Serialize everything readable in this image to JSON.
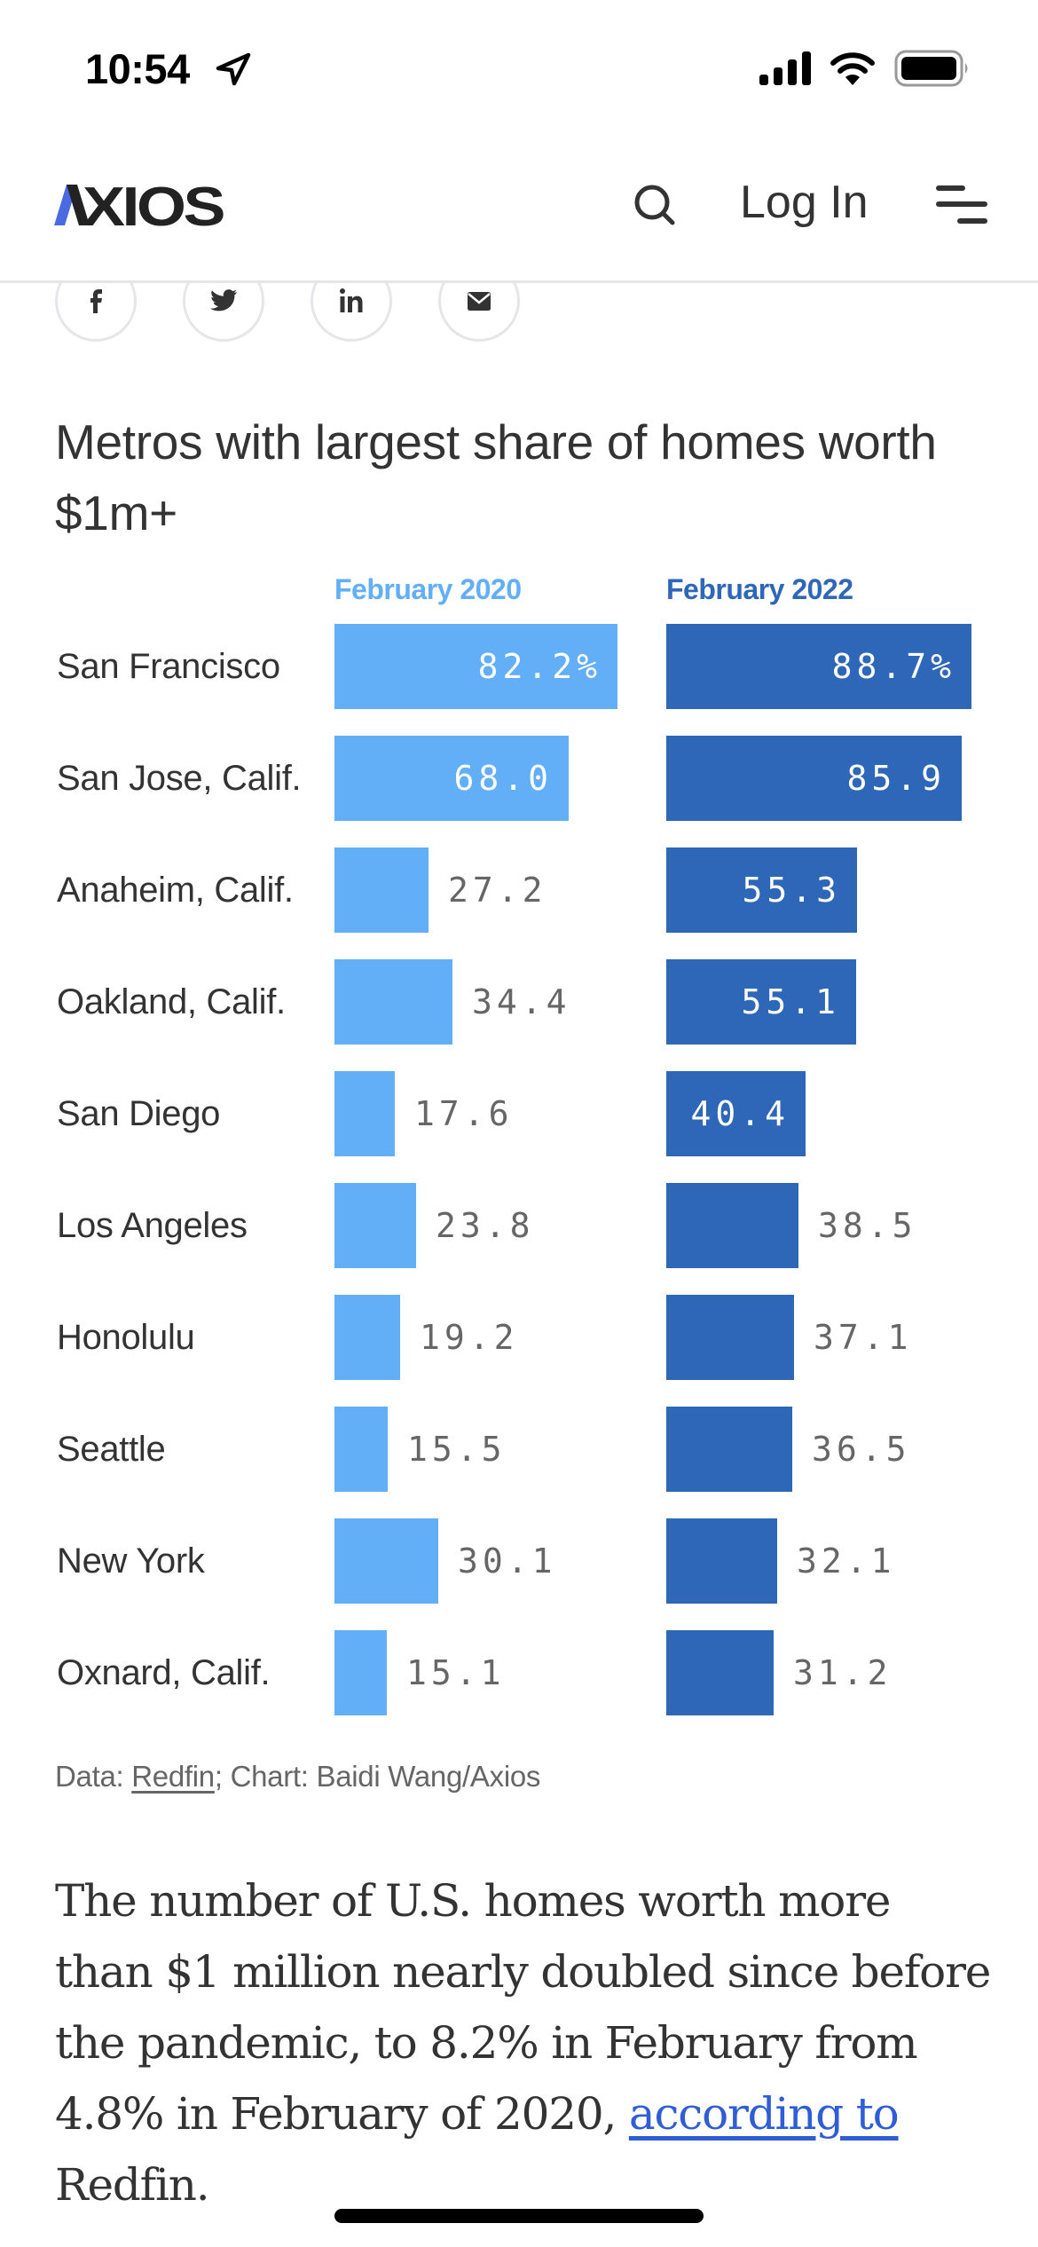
{
  "status_bar": {
    "time": "10:54",
    "location_icon": "location-arrow-icon",
    "signal_icon": "cellular-signal-icon",
    "wifi_icon": "wifi-icon",
    "battery_icon": "battery-icon"
  },
  "header": {
    "logo_text": "AXIOS",
    "search_icon": "search-icon",
    "login_label": "Log In",
    "menu_icon": "menu-icon"
  },
  "share": {
    "items": [
      {
        "name": "facebook",
        "icon": "facebook-icon"
      },
      {
        "name": "twitter",
        "icon": "twitter-icon"
      },
      {
        "name": "linkedin",
        "icon": "linkedin-icon"
      },
      {
        "name": "email",
        "icon": "email-icon"
      }
    ]
  },
  "colors": {
    "series_2020": "#62AFF8",
    "series_2022": "#2F67B8",
    "label_outside": "#666666",
    "label_inside": "#FFFFFF",
    "link": "#2F5DD6",
    "logo_accent": "#4A6BE0"
  },
  "chart_data": {
    "type": "bar",
    "orientation": "horizontal",
    "title": "Metros with largest share of homes worth $1m+",
    "xlabel": "",
    "ylabel": "",
    "unit": "%",
    "xlim": [
      0,
      100
    ],
    "grid": false,
    "legend": "top (column headers above each bar column)",
    "categories": [
      "San Francisco",
      "San Jose, Calif.",
      "Anaheim, Calif.",
      "Oakland, Calif.",
      "San Diego",
      "Los Angeles",
      "Honolulu",
      "Seattle",
      "New York",
      "Oxnard, Calif."
    ],
    "series": [
      {
        "name": "February 2020",
        "values": [
          82.2,
          68.0,
          27.2,
          34.4,
          17.6,
          23.8,
          19.2,
          15.5,
          30.1,
          15.1
        ],
        "labels": [
          "82.2%",
          "68.0",
          "27.2",
          "34.4",
          "17.6",
          "23.8",
          "19.2",
          "15.5",
          "30.1",
          "15.1"
        ]
      },
      {
        "name": "February 2022",
        "values": [
          88.7,
          85.9,
          55.3,
          55.1,
          40.4,
          38.5,
          37.1,
          36.5,
          32.1,
          31.2
        ],
        "labels": [
          "88.7%",
          "85.9",
          "55.3",
          "55.1",
          "40.4",
          "38.5",
          "37.1",
          "36.5",
          "32.1",
          "31.2"
        ]
      }
    ],
    "source_prefix": "Data: ",
    "source_link": "Redfin",
    "source_suffix": "; Chart: Baidi Wang/Axios"
  },
  "article": {
    "paragraph_text": "The number of U.S. homes worth more than $1 million nearly doubled since before the pandemic, to 8.2% in February from 4.8% in February of 2020, ",
    "link_text": "according to",
    "paragraph_end": " Redfin."
  }
}
